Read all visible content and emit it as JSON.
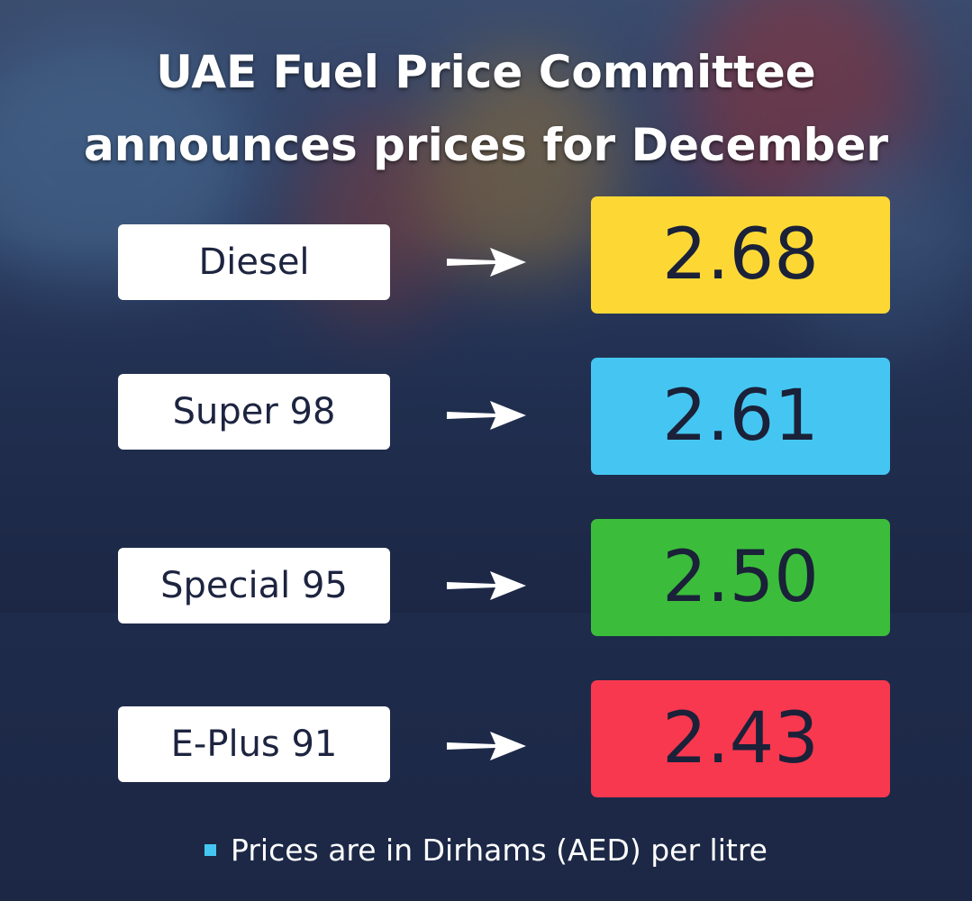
{
  "title": {
    "line1": "UAE Fuel Price Committee",
    "line2": "announces prices for December"
  },
  "fuels": [
    {
      "name": "Diesel",
      "price": "2.68",
      "color": "#fdd835"
    },
    {
      "name": "Super 98",
      "price": "2.61",
      "color": "#45c6f2"
    },
    {
      "name": "Special 95",
      "price": "2.50",
      "color": "#3bbd3b"
    },
    {
      "name": "E-Plus 91",
      "price": "2.43",
      "color": "#f7384f"
    }
  ],
  "footnote": {
    "text": "Prices are in Dirhams (AED) per litre",
    "bullet_color": "#45c6f2",
    "bullet_icon": "square-bullet-icon"
  },
  "arrow_icon": "arrow-right-icon"
}
